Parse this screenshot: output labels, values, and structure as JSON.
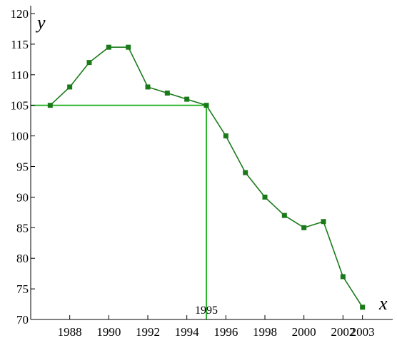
{
  "chart_data": {
    "type": "line",
    "title": "",
    "xlabel": "x",
    "ylabel": "y",
    "xlim": [
      1986,
      2004
    ],
    "ylim": [
      70,
      120
    ],
    "x_ticks": [
      1988,
      1990,
      1992,
      1994,
      1996,
      1998,
      2000,
      2002,
      2003
    ],
    "y_ticks": [
      70,
      75,
      80,
      85,
      90,
      95,
      100,
      105,
      110,
      115,
      120
    ],
    "grid": false,
    "series": [
      {
        "x": [
          1987,
          1988,
          1989,
          1990,
          1991,
          1992,
          1993,
          1994,
          1995,
          1996,
          1997,
          1998,
          1999,
          2000,
          2001,
          2002,
          2003
        ],
        "y": [
          105,
          108,
          112,
          114.5,
          114.5,
          108,
          107,
          106,
          105,
          100,
          94,
          90,
          87,
          85,
          86,
          77,
          72
        ],
        "color": "#1a7a1a",
        "marker": "square"
      }
    ],
    "reference_lines": {
      "x": 1995,
      "y": 105,
      "color": "#2db52d"
    },
    "annotations": [
      {
        "text": "1995",
        "x": 1995
      }
    ]
  }
}
